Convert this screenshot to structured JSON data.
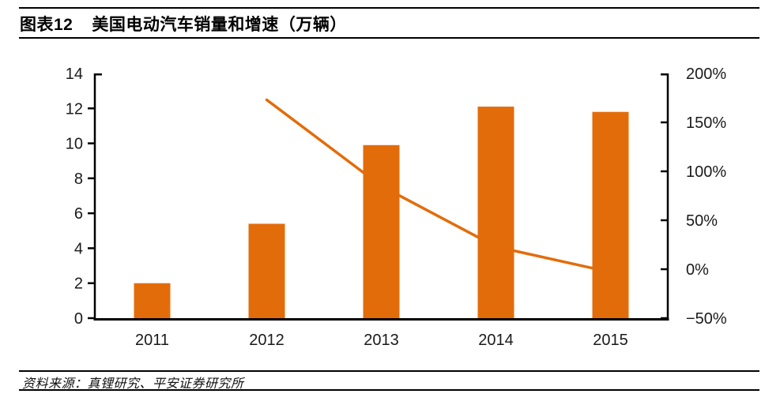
{
  "header": {
    "figure_label": "图表12",
    "title": "美国电动汽车销量和增速（万辆）"
  },
  "footer": {
    "source": "资料来源：真锂研究、平安证券研究所"
  },
  "colors": {
    "accent_orange": "#E36C0A",
    "axis_black": "#000000",
    "label_gray": "#1a1a1a"
  },
  "chart_data": {
    "type": "combo",
    "title": "美国电动汽车销量和增速（万辆）",
    "categories": [
      "2011",
      "2012",
      "2013",
      "2014",
      "2015"
    ],
    "series": [
      {
        "name": "美国电动汽车销量（万辆）",
        "type": "bar",
        "axis": "left",
        "values": [
          2.0,
          5.4,
          9.9,
          12.1,
          11.8
        ]
      },
      {
        "name": "增速",
        "type": "line",
        "axis": "right",
        "unit": "%",
        "values": [
          null,
          173,
          85,
          23,
          -3
        ]
      }
    ],
    "left_axis": {
      "min": 0,
      "max": 14,
      "ticks": [
        14,
        12,
        10,
        8,
        6,
        4,
        2,
        0
      ]
    },
    "right_axis": {
      "min": -50,
      "max": 200,
      "ticks": [
        200,
        150,
        100,
        50,
        0,
        -50
      ],
      "format": "percent"
    },
    "grid": false,
    "legend": "none",
    "bar_color": "#E36C0A",
    "line_color": "#E36C0A"
  }
}
